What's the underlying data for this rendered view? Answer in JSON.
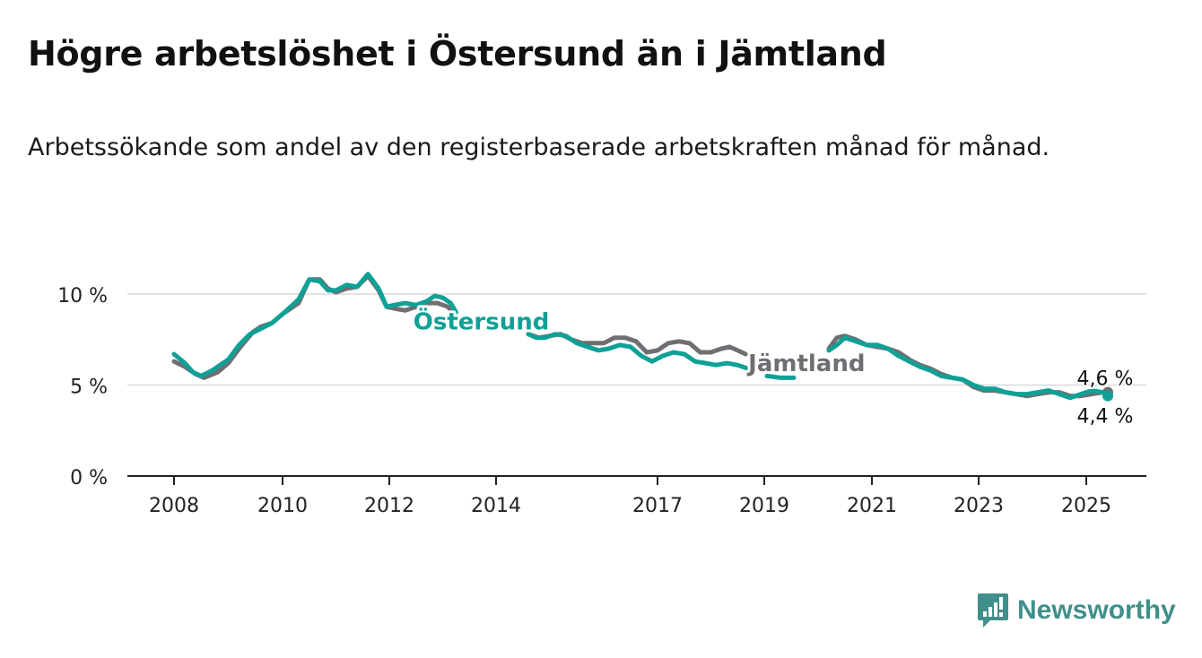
{
  "title": "Högre arbetslöshet i Östersund än i Jämtland",
  "subtitle": "Arbetssökande som andel av den registerbaserade arbetskraften månad för månad.",
  "logo": {
    "name": "Newsworthy",
    "icon": "newsworthy-chart-icon",
    "color": "#3f8f8a"
  },
  "chart_data": {
    "type": "line",
    "title": "Högre arbetslöshet i Östersund än i Jämtland",
    "subtitle": "Arbetssökande som andel av den registerbaserade arbetskraften månad för månad.",
    "xlabel": "",
    "ylabel": "",
    "x_ticks": [
      "2008",
      "2010",
      "2012",
      "2014",
      "2017",
      "2019",
      "2021",
      "2023",
      "2025"
    ],
    "x_tick_years": [
      2008.0,
      2010.0,
      2012.0,
      2014.0,
      2017.0,
      2019.0,
      2021.0,
      2023.0,
      2025.0
    ],
    "y_ticks": [
      "0 %",
      "5 %",
      "10 %"
    ],
    "y_tick_values": [
      0,
      5,
      10
    ],
    "ylim": [
      0,
      10
    ],
    "xlim": [
      2008.0,
      2025.4
    ],
    "grid": true,
    "series": [
      {
        "name": "Jämtland",
        "color": "#6e6e73",
        "label_position": {
          "x": 2018.7,
          "y": 6.2
        },
        "segments": [
          [
            [
              2008.0,
              6.3
            ],
            [
              2008.2,
              6.0
            ],
            [
              2008.4,
              5.6
            ],
            [
              2008.55,
              5.4
            ],
            [
              2008.8,
              5.7
            ],
            [
              2009.0,
              6.2
            ],
            [
              2009.2,
              7.0
            ],
            [
              2009.45,
              7.9
            ],
            [
              2009.6,
              8.2
            ],
            [
              2009.8,
              8.4
            ],
            [
              2010.0,
              8.9
            ],
            [
              2010.3,
              9.5
            ],
            [
              2010.5,
              10.8
            ],
            [
              2010.7,
              10.8
            ],
            [
              2010.85,
              10.3
            ],
            [
              2011.0,
              10.1
            ],
            [
              2011.2,
              10.3
            ],
            [
              2011.4,
              10.4
            ],
            [
              2011.6,
              11.0
            ],
            [
              2011.8,
              10.2
            ],
            [
              2011.95,
              9.3
            ],
            [
              2012.1,
              9.2
            ],
            [
              2012.3,
              9.1
            ],
            [
              2012.5,
              9.3
            ],
            [
              2012.7,
              9.5
            ],
            [
              2012.9,
              9.5
            ],
            [
              2013.1,
              9.3
            ],
            [
              2013.25,
              8.7
            ]
          ],
          [
            [
              2014.6,
              7.8
            ],
            [
              2014.8,
              7.6
            ],
            [
              2015.0,
              7.7
            ],
            [
              2015.2,
              7.8
            ],
            [
              2015.4,
              7.5
            ],
            [
              2015.6,
              7.3
            ],
            [
              2015.8,
              7.3
            ],
            [
              2016.0,
              7.3
            ],
            [
              2016.2,
              7.6
            ],
            [
              2016.4,
              7.6
            ],
            [
              2016.6,
              7.4
            ],
            [
              2016.8,
              6.8
            ],
            [
              2017.0,
              6.9
            ],
            [
              2017.2,
              7.3
            ],
            [
              2017.4,
              7.4
            ],
            [
              2017.6,
              7.3
            ],
            [
              2017.8,
              6.8
            ],
            [
              2018.0,
              6.8
            ],
            [
              2018.2,
              7.0
            ],
            [
              2018.35,
              7.1
            ],
            [
              2018.5,
              6.9
            ],
            [
              2018.65,
              6.7
            ]
          ],
          [
            [
              2020.2,
              7.0
            ],
            [
              2020.35,
              7.6
            ],
            [
              2020.5,
              7.7
            ],
            [
              2020.7,
              7.5
            ],
            [
              2020.9,
              7.2
            ],
            [
              2021.1,
              7.1
            ],
            [
              2021.3,
              7.0
            ],
            [
              2021.5,
              6.8
            ],
            [
              2021.7,
              6.4
            ],
            [
              2021.9,
              6.1
            ],
            [
              2022.1,
              5.9
            ],
            [
              2022.3,
              5.6
            ],
            [
              2022.5,
              5.4
            ],
            [
              2022.7,
              5.3
            ],
            [
              2022.9,
              4.9
            ],
            [
              2023.1,
              4.7
            ],
            [
              2023.3,
              4.7
            ],
            [
              2023.5,
              4.6
            ],
            [
              2023.7,
              4.5
            ],
            [
              2023.9,
              4.4
            ],
            [
              2024.1,
              4.5
            ],
            [
              2024.3,
              4.6
            ],
            [
              2024.5,
              4.6
            ],
            [
              2024.7,
              4.4
            ],
            [
              2024.9,
              4.4
            ],
            [
              2025.1,
              4.5
            ],
            [
              2025.3,
              4.6
            ],
            [
              2025.4,
              4.6
            ]
          ]
        ]
      },
      {
        "name": "Östersund",
        "color": "#0fa196",
        "label_position": {
          "x": 2012.45,
          "y": 8.5
        },
        "segments": [
          [
            [
              2008.0,
              6.7
            ],
            [
              2008.2,
              6.2
            ],
            [
              2008.35,
              5.7
            ],
            [
              2008.5,
              5.5
            ],
            [
              2008.7,
              5.8
            ],
            [
              2009.0,
              6.4
            ],
            [
              2009.2,
              7.2
            ],
            [
              2009.4,
              7.8
            ],
            [
              2009.6,
              8.1
            ],
            [
              2009.8,
              8.4
            ],
            [
              2010.0,
              8.9
            ],
            [
              2010.3,
              9.7
            ],
            [
              2010.5,
              10.8
            ],
            [
              2010.7,
              10.7
            ],
            [
              2010.85,
              10.2
            ],
            [
              2011.0,
              10.2
            ],
            [
              2011.2,
              10.5
            ],
            [
              2011.4,
              10.4
            ],
            [
              2011.6,
              11.1
            ],
            [
              2011.8,
              10.3
            ],
            [
              2011.95,
              9.3
            ],
            [
              2012.1,
              9.4
            ],
            [
              2012.3,
              9.5
            ],
            [
              2012.5,
              9.4
            ],
            [
              2012.7,
              9.6
            ],
            [
              2012.85,
              9.9
            ],
            [
              2013.0,
              9.8
            ],
            [
              2013.15,
              9.5
            ],
            [
              2013.25,
              9.0
            ]
          ],
          [
            [
              2014.6,
              7.8
            ],
            [
              2014.75,
              7.6
            ],
            [
              2014.9,
              7.6
            ],
            [
              2015.1,
              7.8
            ],
            [
              2015.3,
              7.7
            ],
            [
              2015.5,
              7.3
            ],
            [
              2015.7,
              7.1
            ],
            [
              2015.9,
              6.9
            ],
            [
              2016.1,
              7.0
            ],
            [
              2016.3,
              7.2
            ],
            [
              2016.5,
              7.1
            ],
            [
              2016.7,
              6.6
            ],
            [
              2016.9,
              6.3
            ],
            [
              2017.1,
              6.6
            ],
            [
              2017.3,
              6.8
            ],
            [
              2017.5,
              6.7
            ],
            [
              2017.7,
              6.3
            ],
            [
              2017.9,
              6.2
            ],
            [
              2018.1,
              6.1
            ],
            [
              2018.3,
              6.2
            ],
            [
              2018.5,
              6.1
            ],
            [
              2018.7,
              5.9
            ],
            [
              2018.85,
              6.0
            ]
          ],
          [
            [
              2019.05,
              5.5
            ],
            [
              2019.3,
              5.4
            ],
            [
              2019.55,
              5.4
            ]
          ],
          [
            [
              2020.2,
              6.9
            ],
            [
              2020.35,
              7.2
            ],
            [
              2020.5,
              7.6
            ],
            [
              2020.7,
              7.4
            ],
            [
              2020.9,
              7.2
            ],
            [
              2021.1,
              7.2
            ],
            [
              2021.3,
              7.0
            ],
            [
              2021.5,
              6.6
            ],
            [
              2021.7,
              6.3
            ],
            [
              2021.9,
              6.0
            ],
            [
              2022.1,
              5.8
            ],
            [
              2022.3,
              5.5
            ],
            [
              2022.5,
              5.4
            ],
            [
              2022.7,
              5.3
            ],
            [
              2022.9,
              5.0
            ],
            [
              2023.1,
              4.8
            ],
            [
              2023.3,
              4.8
            ],
            [
              2023.5,
              4.6
            ],
            [
              2023.7,
              4.5
            ],
            [
              2023.9,
              4.5
            ],
            [
              2024.1,
              4.6
            ],
            [
              2024.3,
              4.7
            ],
            [
              2024.5,
              4.5
            ],
            [
              2024.7,
              4.3
            ],
            [
              2024.9,
              4.5
            ],
            [
              2025.1,
              4.7
            ],
            [
              2025.3,
              4.6
            ],
            [
              2025.4,
              4.4
            ]
          ]
        ]
      }
    ],
    "annotations": [
      {
        "text": "4,6 %",
        "x": 2025.35,
        "y": 4.6,
        "placement": "above"
      },
      {
        "text": "4,4 %",
        "x": 2025.35,
        "y": 4.4,
        "placement": "below"
      }
    ]
  }
}
